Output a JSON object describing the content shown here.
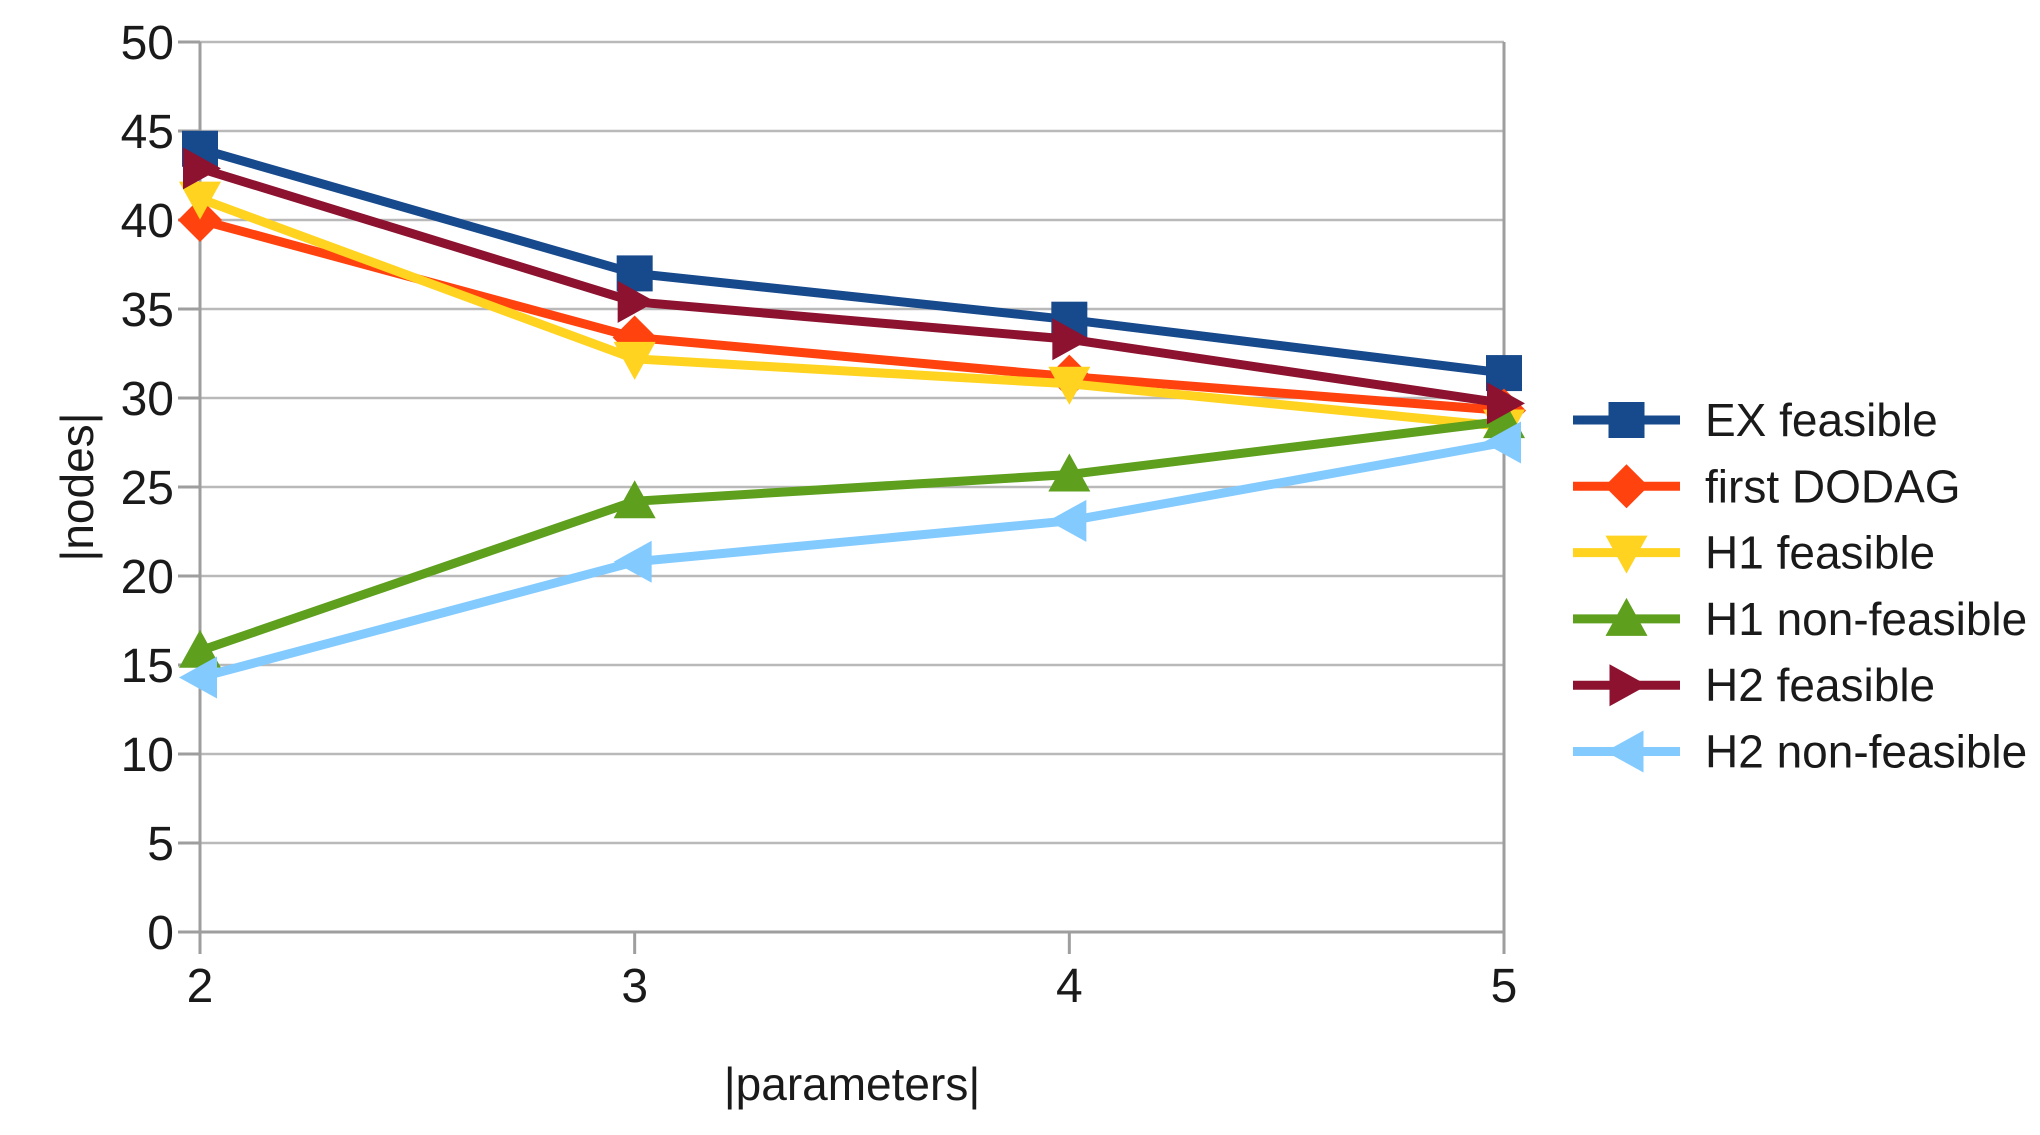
{
  "chart_data": {
    "type": "line",
    "x": [
      2,
      3,
      4,
      5
    ],
    "x_ticks": [
      "2",
      "3",
      "4",
      "5"
    ],
    "y_ticks": [
      "0",
      "5",
      "10",
      "15",
      "20",
      "25",
      "30",
      "35",
      "40",
      "45",
      "50"
    ],
    "xlabel": "|parameters|",
    "ylabel": "|nodes|",
    "ylim": [
      0,
      50
    ],
    "xlim": [
      2,
      5
    ],
    "grid": "horizontal",
    "legend_position": "right",
    "series": [
      {
        "name": "EX feasible",
        "marker": "square",
        "color": "#17498D",
        "values": [
          44.0,
          37.0,
          34.4,
          31.4
        ]
      },
      {
        "name": "first DODAG",
        "marker": "diamond",
        "color": "#FF420E",
        "values": [
          40.0,
          33.4,
          31.2,
          29.3
        ]
      },
      {
        "name": "H1 feasible",
        "marker": "triangle-down",
        "color": "#FFD320",
        "values": [
          41.2,
          32.2,
          30.8,
          28.4
        ]
      },
      {
        "name": "H1 non-feasible",
        "marker": "triangle-up",
        "color": "#5E9F1E",
        "values": [
          15.8,
          24.2,
          25.7,
          28.7
        ]
      },
      {
        "name": "H2 feasible",
        "marker": "triangle-right",
        "color": "#8C1230",
        "values": [
          42.9,
          35.4,
          33.3,
          29.7
        ]
      },
      {
        "name": "H2 non-feasible",
        "marker": "triangle-left",
        "color": "#83CAFF",
        "values": [
          14.3,
          20.8,
          23.1,
          27.5
        ]
      }
    ],
    "colors": {
      "background": "#FFFFFF",
      "grid": "#B9B9B9",
      "axis": "#9E9E9E",
      "text": "#1A1A1A"
    }
  }
}
